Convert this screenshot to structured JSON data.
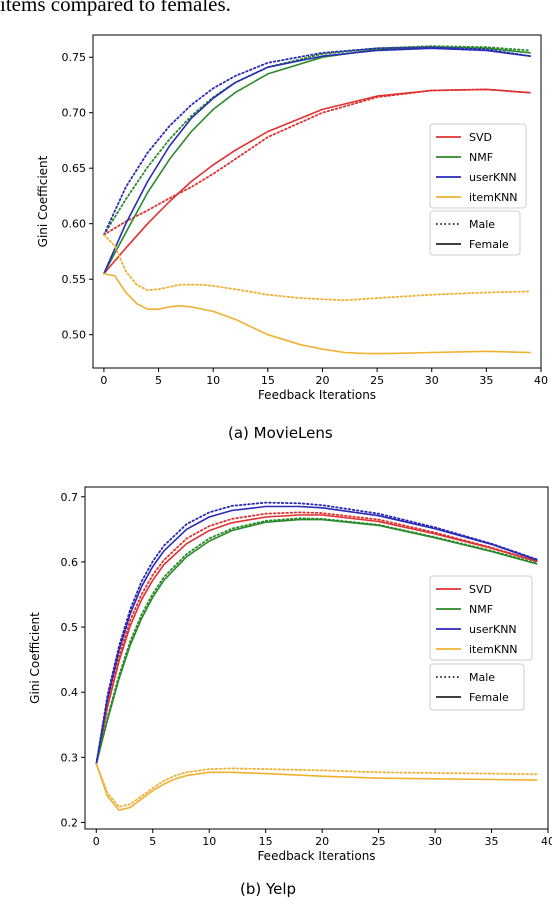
{
  "page_text": "items compared to females.",
  "chart_data": [
    {
      "type": "line",
      "caption": "(a) MovieLens",
      "xlabel": "Feedback Iterations",
      "ylabel": "Gini Coefficient",
      "xlim": [
        -1,
        40
      ],
      "ylim": [
        0.47,
        0.77
      ],
      "xticks": [
        0,
        5,
        10,
        15,
        20,
        25,
        30,
        35,
        40
      ],
      "yticks": [
        0.5,
        0.55,
        0.6,
        0.65,
        0.7,
        0.75
      ],
      "ytick_labels": [
        "0.50",
        "0.55",
        "0.60",
        "0.65",
        "0.70",
        "0.75"
      ],
      "grid": false,
      "legend": {
        "placement": "center-right",
        "algorithms": [
          {
            "name": "SVD",
            "color": "#e03030"
          },
          {
            "name": "NMF",
            "color": "#2a8a2a"
          },
          {
            "name": "userKNN",
            "color": "#2a2ab8"
          },
          {
            "name": "itemKNN",
            "color": "#f0b030"
          }
        ],
        "styles": [
          {
            "name": "Male",
            "dash": "dotted"
          },
          {
            "name": "Female",
            "dash": "solid"
          }
        ]
      },
      "series": [
        {
          "algorithm": "SVD",
          "group": "Male",
          "color": "#e03030",
          "dash": "dotted",
          "x": [
            0,
            2,
            4,
            6,
            8,
            10,
            12,
            15,
            20,
            25,
            30,
            35,
            39
          ],
          "y": [
            0.59,
            0.602,
            0.612,
            0.623,
            0.633,
            0.645,
            0.658,
            0.678,
            0.7,
            0.714,
            0.72,
            0.721,
            0.718
          ]
        },
        {
          "algorithm": "SVD",
          "group": "Female",
          "color": "#e03030",
          "dash": "solid",
          "x": [
            0,
            2,
            4,
            6,
            8,
            10,
            12,
            15,
            20,
            25,
            30,
            35,
            39
          ],
          "y": [
            0.555,
            0.578,
            0.6,
            0.62,
            0.638,
            0.653,
            0.666,
            0.683,
            0.703,
            0.715,
            0.72,
            0.721,
            0.718
          ]
        },
        {
          "algorithm": "NMF",
          "group": "Male",
          "color": "#2a8a2a",
          "dash": "dotted",
          "x": [
            0,
            2,
            4,
            6,
            8,
            10,
            12,
            15,
            20,
            25,
            30,
            35,
            39
          ],
          "y": [
            0.59,
            0.622,
            0.651,
            0.676,
            0.697,
            0.714,
            0.727,
            0.741,
            0.753,
            0.758,
            0.76,
            0.759,
            0.756
          ]
        },
        {
          "algorithm": "NMF",
          "group": "Female",
          "color": "#2a8a2a",
          "dash": "solid",
          "x": [
            0,
            2,
            4,
            6,
            8,
            10,
            12,
            15,
            20,
            25,
            30,
            35,
            39
          ],
          "y": [
            0.555,
            0.592,
            0.628,
            0.658,
            0.683,
            0.703,
            0.718,
            0.735,
            0.75,
            0.757,
            0.759,
            0.758,
            0.754
          ]
        },
        {
          "algorithm": "userKNN",
          "group": "Male",
          "color": "#2a2ab8",
          "dash": "dotted",
          "x": [
            0,
            2,
            4,
            6,
            8,
            10,
            12,
            15,
            20,
            25,
            30,
            35,
            39
          ],
          "y": [
            0.59,
            0.633,
            0.664,
            0.688,
            0.707,
            0.722,
            0.733,
            0.745,
            0.754,
            0.758,
            0.759,
            0.757,
            0.751
          ]
        },
        {
          "algorithm": "userKNN",
          "group": "Female",
          "color": "#2a2ab8",
          "dash": "solid",
          "x": [
            0,
            2,
            4,
            6,
            8,
            10,
            12,
            15,
            20,
            25,
            30,
            35,
            39
          ],
          "y": [
            0.555,
            0.6,
            0.638,
            0.67,
            0.695,
            0.713,
            0.727,
            0.741,
            0.751,
            0.756,
            0.758,
            0.756,
            0.751
          ]
        },
        {
          "algorithm": "itemKNN",
          "group": "Male",
          "color": "#f0b030",
          "dash": "dotted",
          "x": [
            0,
            1,
            2,
            3,
            4,
            5,
            6,
            7,
            8,
            9,
            10,
            12,
            15,
            18,
            20,
            22,
            25,
            30,
            35,
            39
          ],
          "y": [
            0.59,
            0.58,
            0.557,
            0.545,
            0.54,
            0.541,
            0.543,
            0.545,
            0.545,
            0.545,
            0.544,
            0.541,
            0.536,
            0.533,
            0.532,
            0.531,
            0.533,
            0.536,
            0.538,
            0.539
          ]
        },
        {
          "algorithm": "itemKNN",
          "group": "Female",
          "color": "#f0b030",
          "dash": "solid",
          "x": [
            0,
            1,
            2,
            3,
            4,
            5,
            6,
            7,
            8,
            10,
            12,
            15,
            18,
            20,
            22,
            24,
            26,
            30,
            35,
            39
          ],
          "y": [
            0.555,
            0.553,
            0.538,
            0.528,
            0.523,
            0.523,
            0.525,
            0.526,
            0.525,
            0.521,
            0.514,
            0.5,
            0.491,
            0.487,
            0.484,
            0.483,
            0.483,
            0.484,
            0.485,
            0.484
          ]
        }
      ]
    },
    {
      "type": "line",
      "caption": "(b) Yelp",
      "xlabel": "Feedback Iterations",
      "ylabel": "Gini Coefficient",
      "xlim": [
        -1,
        40
      ],
      "ylim": [
        0.19,
        0.715
      ],
      "xticks": [
        0,
        5,
        10,
        15,
        20,
        25,
        30,
        35,
        40
      ],
      "yticks": [
        0.2,
        0.3,
        0.4,
        0.5,
        0.6,
        0.7
      ],
      "ytick_labels": [
        "0.2",
        "0.3",
        "0.4",
        "0.5",
        "0.6",
        "0.7"
      ],
      "grid": false,
      "legend": {
        "placement": "center-right",
        "algorithms": [
          {
            "name": "SVD",
            "color": "#e03030"
          },
          {
            "name": "NMF",
            "color": "#2a8a2a"
          },
          {
            "name": "userKNN",
            "color": "#2a2ab8"
          },
          {
            "name": "itemKNN",
            "color": "#f0b030"
          }
        ],
        "styles": [
          {
            "name": "Male",
            "dash": "dotted"
          },
          {
            "name": "Female",
            "dash": "solid"
          }
        ]
      },
      "series": [
        {
          "algorithm": "SVD",
          "group": "Male",
          "color": "#e03030",
          "dash": "dotted",
          "x": [
            0,
            1,
            2,
            3,
            4,
            5,
            6,
            8,
            10,
            12,
            15,
            18,
            20,
            25,
            30,
            35,
            39
          ],
          "y": [
            0.29,
            0.385,
            0.455,
            0.51,
            0.55,
            0.58,
            0.603,
            0.636,
            0.655,
            0.666,
            0.674,
            0.676,
            0.675,
            0.665,
            0.645,
            0.622,
            0.601
          ]
        },
        {
          "algorithm": "SVD",
          "group": "Female",
          "color": "#e03030",
          "dash": "solid",
          "x": [
            0,
            1,
            2,
            3,
            4,
            5,
            6,
            8,
            10,
            12,
            15,
            18,
            20,
            25,
            30,
            35,
            39
          ],
          "y": [
            0.29,
            0.378,
            0.447,
            0.502,
            0.542,
            0.572,
            0.596,
            0.628,
            0.648,
            0.66,
            0.669,
            0.672,
            0.672,
            0.662,
            0.643,
            0.621,
            0.601
          ]
        },
        {
          "algorithm": "NMF",
          "group": "Male",
          "color": "#2a8a2a",
          "dash": "dotted",
          "x": [
            0,
            1,
            2,
            3,
            4,
            5,
            6,
            8,
            10,
            12,
            15,
            18,
            20,
            25,
            30,
            35,
            39
          ],
          "y": [
            0.29,
            0.362,
            0.425,
            0.478,
            0.519,
            0.551,
            0.577,
            0.612,
            0.636,
            0.651,
            0.663,
            0.667,
            0.666,
            0.657,
            0.638,
            0.617,
            0.598
          ]
        },
        {
          "algorithm": "NMF",
          "group": "Female",
          "color": "#2a8a2a",
          "dash": "solid",
          "x": [
            0,
            1,
            2,
            3,
            4,
            5,
            6,
            8,
            10,
            12,
            15,
            18,
            20,
            25,
            30,
            35,
            39
          ],
          "y": [
            0.29,
            0.358,
            0.42,
            0.472,
            0.513,
            0.546,
            0.572,
            0.608,
            0.632,
            0.648,
            0.661,
            0.665,
            0.665,
            0.656,
            0.637,
            0.616,
            0.597
          ]
        },
        {
          "algorithm": "userKNN",
          "group": "Male",
          "color": "#2a2ab8",
          "dash": "dotted",
          "x": [
            0,
            1,
            2,
            3,
            4,
            5,
            6,
            8,
            10,
            12,
            15,
            18,
            20,
            25,
            30,
            35,
            39
          ],
          "y": [
            0.29,
            0.396,
            0.47,
            0.527,
            0.57,
            0.601,
            0.625,
            0.658,
            0.676,
            0.686,
            0.691,
            0.69,
            0.687,
            0.674,
            0.653,
            0.628,
            0.604
          ]
        },
        {
          "algorithm": "userKNN",
          "group": "Female",
          "color": "#2a2ab8",
          "dash": "solid",
          "x": [
            0,
            1,
            2,
            3,
            4,
            5,
            6,
            8,
            10,
            12,
            15,
            18,
            20,
            25,
            30,
            35,
            39
          ],
          "y": [
            0.29,
            0.391,
            0.464,
            0.52,
            0.562,
            0.593,
            0.617,
            0.65,
            0.669,
            0.679,
            0.685,
            0.685,
            0.683,
            0.671,
            0.651,
            0.627,
            0.603
          ]
        },
        {
          "algorithm": "itemKNN",
          "group": "Male",
          "color": "#f0b030",
          "dash": "dotted",
          "x": [
            0,
            1,
            2,
            3,
            4,
            5,
            6,
            7,
            8,
            10,
            12,
            15,
            20,
            25,
            30,
            35,
            39
          ],
          "y": [
            0.29,
            0.245,
            0.224,
            0.228,
            0.24,
            0.253,
            0.264,
            0.272,
            0.277,
            0.282,
            0.283,
            0.282,
            0.28,
            0.277,
            0.276,
            0.275,
            0.274
          ]
        },
        {
          "algorithm": "itemKNN",
          "group": "Female",
          "color": "#f0b030",
          "dash": "solid",
          "x": [
            0,
            1,
            2,
            3,
            4,
            5,
            6,
            7,
            8,
            10,
            12,
            15,
            20,
            25,
            30,
            35,
            39
          ],
          "y": [
            0.29,
            0.24,
            0.219,
            0.223,
            0.236,
            0.249,
            0.259,
            0.267,
            0.272,
            0.277,
            0.277,
            0.275,
            0.271,
            0.268,
            0.267,
            0.266,
            0.265
          ]
        }
      ]
    }
  ]
}
